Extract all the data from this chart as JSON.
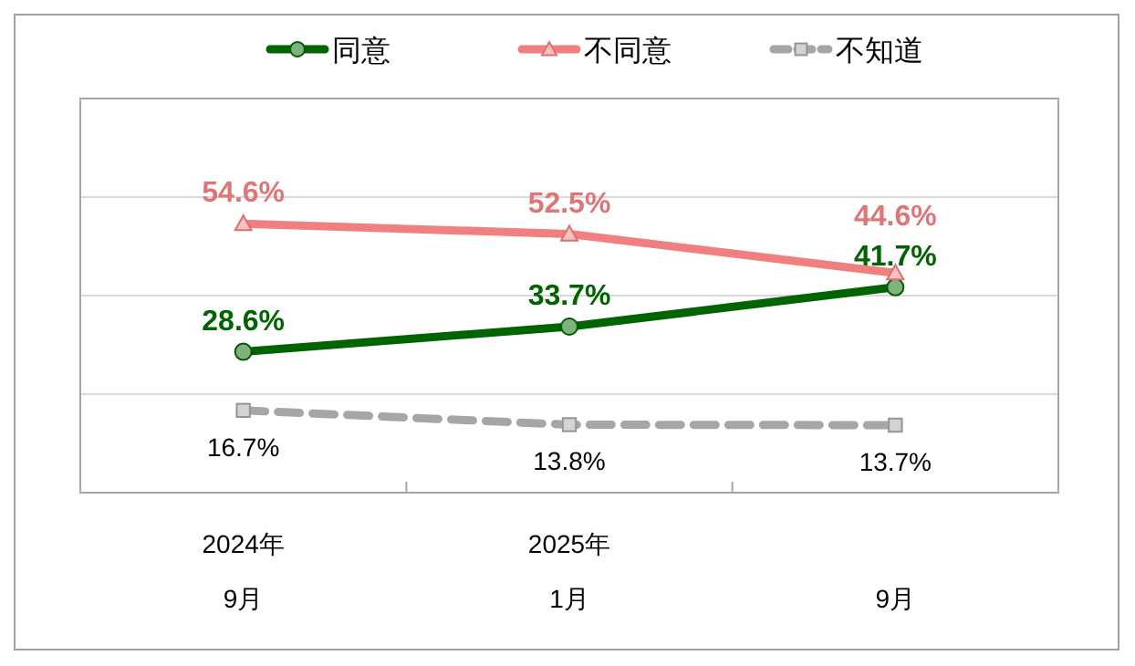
{
  "chart_data": {
    "type": "line",
    "categories": [
      "2024年\n9月",
      "2025年\n1月",
      "9月"
    ],
    "series": [
      {
        "name": "同意",
        "color": "#006400",
        "values": [
          28.6,
          33.7,
          41.7
        ],
        "value_labels": [
          "28.6%",
          "33.7%",
          "41.7%"
        ],
        "marker": "circle",
        "line_style": "solid"
      },
      {
        "name": "不同意",
        "color": "#f08080",
        "values": [
          54.6,
          52.5,
          44.6
        ],
        "value_labels": [
          "54.6%",
          "52.5%",
          "44.6%"
        ],
        "marker": "triangle",
        "line_style": "solid"
      },
      {
        "name": "不知道",
        "color": "#a6a6a6",
        "values": [
          16.7,
          13.8,
          13.7
        ],
        "value_labels": [
          "16.7%",
          "13.8%",
          "13.7%"
        ],
        "marker": "square",
        "line_style": "dashed"
      }
    ],
    "ylim": [
      0,
      80
    ],
    "yticks": [
      {
        "value": 20,
        "label": null
      },
      {
        "value": 40,
        "label": null
      },
      {
        "value": 60,
        "label": null
      }
    ],
    "grid": "y",
    "legend": "top"
  }
}
